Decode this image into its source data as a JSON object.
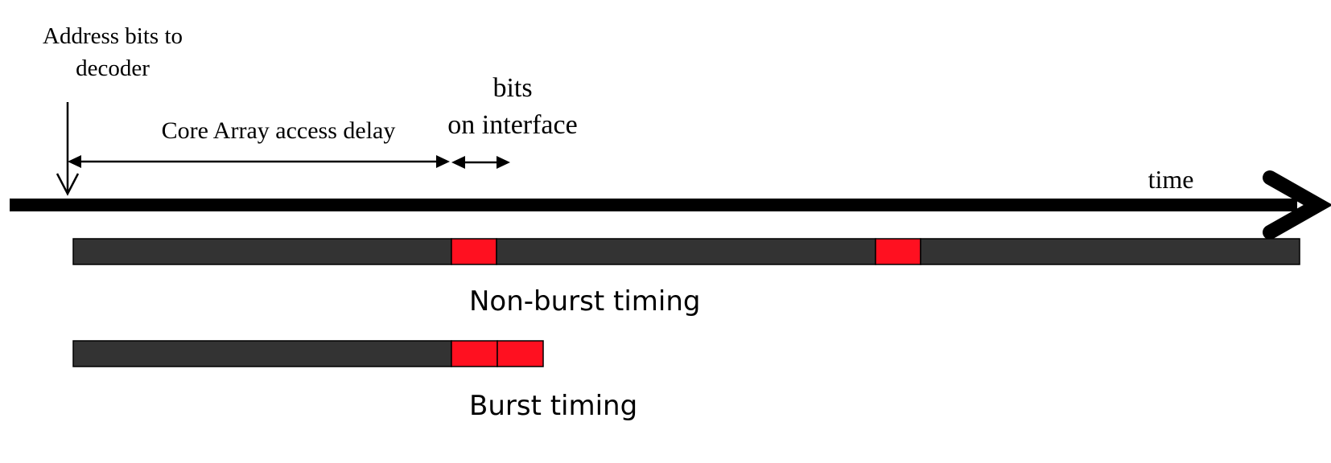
{
  "labels": {
    "address_line1": "Address bits to",
    "address_line2": "decoder",
    "core_delay": "Core Array access delay",
    "bits_line1": "bits",
    "bits_line2": "on interface",
    "time": "time",
    "non_burst": "Non-burst timing",
    "burst": "Burst timing"
  },
  "colors": {
    "axis": "#000000",
    "access_segment": "#333333",
    "transfer_segment": "#ff1020",
    "outline": "#000000"
  },
  "icons": {
    "time_axis": "arrow-right-icon",
    "address_marker": "arrow-down-icon",
    "delay_span": "double-arrow-icon"
  }
}
